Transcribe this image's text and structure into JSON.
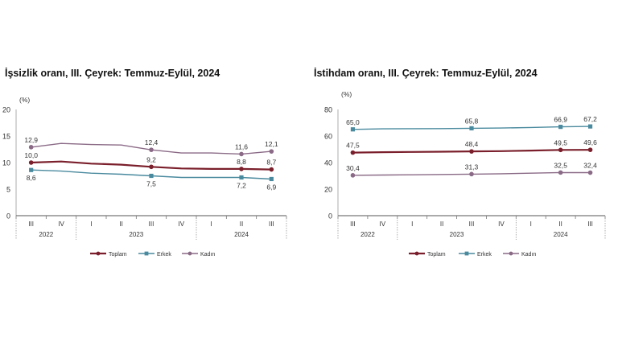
{
  "chart_data": [
    {
      "type": "line",
      "title": "İşsizlik oranı, III. Çeyrek: Temmuz-Eylül, 2024",
      "unit_label": "(%)",
      "ylim": [
        0,
        20
      ],
      "yticks": [
        "0",
        "5",
        "10",
        "15",
        "20"
      ],
      "quarters": [
        "III",
        "IV",
        "I",
        "II",
        "III",
        "IV",
        "I",
        "II",
        "III"
      ],
      "years": [
        "2022",
        "2023",
        "2024"
      ],
      "series": [
        {
          "name": "Toplam",
          "color": "#7a1f2b",
          "values": [
            10.0,
            10.2,
            9.8,
            9.6,
            9.2,
            8.9,
            8.8,
            8.8,
            8.7
          ],
          "labels": [
            "10,0",
            "",
            "",
            "",
            "9,2",
            "",
            "",
            "8,8",
            "8,7"
          ],
          "label_side": "above"
        },
        {
          "name": "Erkek",
          "color": "#4a8a9e",
          "values": [
            8.6,
            8.4,
            8.0,
            7.8,
            7.5,
            7.2,
            7.2,
            7.2,
            6.9
          ],
          "labels": [
            "8,6",
            "",
            "",
            "",
            "7,5",
            "",
            "",
            "7,2",
            "6,9"
          ],
          "label_side": "below"
        },
        {
          "name": "Kadın",
          "color": "#8a6a86",
          "values": [
            12.9,
            13.6,
            13.4,
            13.3,
            12.4,
            11.8,
            11.8,
            11.6,
            12.1
          ],
          "labels": [
            "12,9",
            "",
            "",
            "",
            "12,4",
            "",
            "",
            "11,6",
            "12,1"
          ],
          "label_side": "above"
        }
      ],
      "marker_indices": [
        0,
        4,
        7,
        8
      ]
    },
    {
      "type": "line",
      "title": "İstihdam oranı, III. Çeyrek: Temmuz-Eylül, 2024",
      "unit_label": "(%)",
      "ylim": [
        0,
        80
      ],
      "yticks": [
        "0",
        "20",
        "40",
        "60",
        "80"
      ],
      "quarters": [
        "III",
        "IV",
        "I",
        "II",
        "III",
        "IV",
        "I",
        "II",
        "III"
      ],
      "years": [
        "2022",
        "2023",
        "2024"
      ],
      "series": [
        {
          "name": "Toplam",
          "color": "#7a1f2b",
          "values": [
            47.5,
            47.8,
            48.0,
            48.2,
            48.4,
            48.6,
            49.0,
            49.5,
            49.6
          ],
          "labels": [
            "47,5",
            "",
            "",
            "",
            "48,4",
            "",
            "",
            "49,5",
            "49,6"
          ],
          "label_side": "above"
        },
        {
          "name": "Erkek",
          "color": "#4a8a9e",
          "values": [
            65.0,
            65.4,
            65.5,
            65.6,
            65.8,
            66.0,
            66.4,
            66.9,
            67.2
          ],
          "labels": [
            "65,0",
            "",
            "",
            "",
            "65,8",
            "",
            "",
            "66,9",
            "67,2"
          ],
          "label_side": "above"
        },
        {
          "name": "Kadın",
          "color": "#8a6a86",
          "values": [
            30.4,
            30.6,
            30.8,
            31.0,
            31.3,
            31.6,
            32.0,
            32.5,
            32.4
          ],
          "labels": [
            "30,4",
            "",
            "",
            "",
            "31,3",
            "",
            "",
            "32,5",
            "32,4"
          ],
          "label_side": "above"
        }
      ],
      "marker_indices": [
        0,
        4,
        7,
        8
      ]
    }
  ]
}
